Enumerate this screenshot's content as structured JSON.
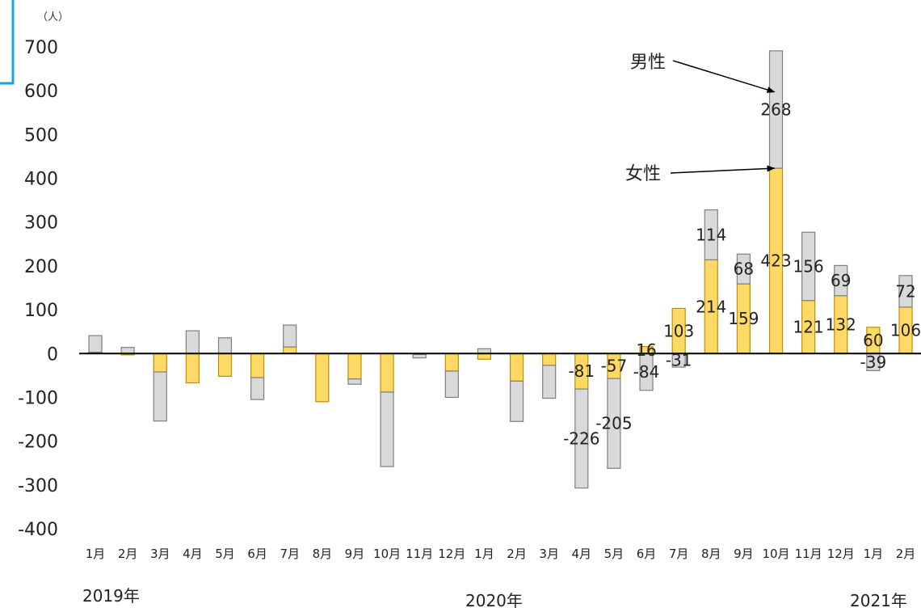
{
  "chart_data": {
    "type": "bar",
    "stacked": true,
    "unit_label": "（人）",
    "ylim": [
      -400,
      700
    ],
    "yticks": [
      700,
      600,
      500,
      400,
      300,
      200,
      100,
      0,
      -100,
      -200,
      -300,
      -400
    ],
    "categories": [
      "1月",
      "2月",
      "3月",
      "4月",
      "5月",
      "6月",
      "7月",
      "8月",
      "9月",
      "10月",
      "11月",
      "12月",
      "1月",
      "2月",
      "3月",
      "4月",
      "5月",
      "6月",
      "7月",
      "8月",
      "9月",
      "10月",
      "11月",
      "12月",
      "1月",
      "2月"
    ],
    "year_labels": [
      "2019年",
      "2020年",
      "2021年"
    ],
    "series": [
      {
        "name": "女性",
        "color": "#ffd966",
        "border": "#bf9000",
        "values": [
          3,
          -3,
          -42,
          -67,
          -52,
          -55,
          15,
          -110,
          -58,
          -88,
          -2,
          -40,
          -13,
          -63,
          -27,
          -81,
          -57,
          16,
          103,
          214,
          159,
          423,
          121,
          132,
          60,
          106
        ]
      },
      {
        "name": "男性",
        "color": "#d9d9d9",
        "border": "#7f7f7f",
        "values": [
          38,
          14,
          -112,
          52,
          36,
          -50,
          50,
          0,
          -12,
          -170,
          -8,
          -60,
          11,
          -92,
          -75,
          -226,
          -205,
          -84,
          -31,
          114,
          68,
          268,
          156,
          69,
          -39,
          72
        ]
      }
    ],
    "data_labels": [
      {
        "series": 0,
        "index": 15,
        "text": "-81"
      },
      {
        "series": 0,
        "index": 16,
        "text": "-57"
      },
      {
        "series": 0,
        "index": 17,
        "text": "16"
      },
      {
        "series": 0,
        "index": 18,
        "text": "103"
      },
      {
        "series": 0,
        "index": 19,
        "text": "214"
      },
      {
        "series": 0,
        "index": 20,
        "text": "159"
      },
      {
        "series": 0,
        "index": 21,
        "text": "423"
      },
      {
        "series": 0,
        "index": 22,
        "text": "121"
      },
      {
        "series": 0,
        "index": 23,
        "text": "132"
      },
      {
        "series": 0,
        "index": 24,
        "text": "60"
      },
      {
        "series": 0,
        "index": 25,
        "text": "106"
      },
      {
        "series": 1,
        "index": 15,
        "text": "-226"
      },
      {
        "series": 1,
        "index": 16,
        "text": "-205"
      },
      {
        "series": 1,
        "index": 17,
        "text": "-84"
      },
      {
        "series": 1,
        "index": 18,
        "text": "-31"
      },
      {
        "series": 1,
        "index": 19,
        "text": "114"
      },
      {
        "series": 1,
        "index": 20,
        "text": "68"
      },
      {
        "series": 1,
        "index": 21,
        "text": "268"
      },
      {
        "series": 1,
        "index": 22,
        "text": "156"
      },
      {
        "series": 1,
        "index": 23,
        "text": "69"
      },
      {
        "series": 1,
        "index": 24,
        "text": "-39"
      },
      {
        "series": 1,
        "index": 25,
        "text": "72"
      }
    ],
    "annotations": [
      {
        "text": "男性",
        "series": 1,
        "index": 21
      },
      {
        "text": "女性",
        "series": 0,
        "index": 21
      }
    ]
  }
}
